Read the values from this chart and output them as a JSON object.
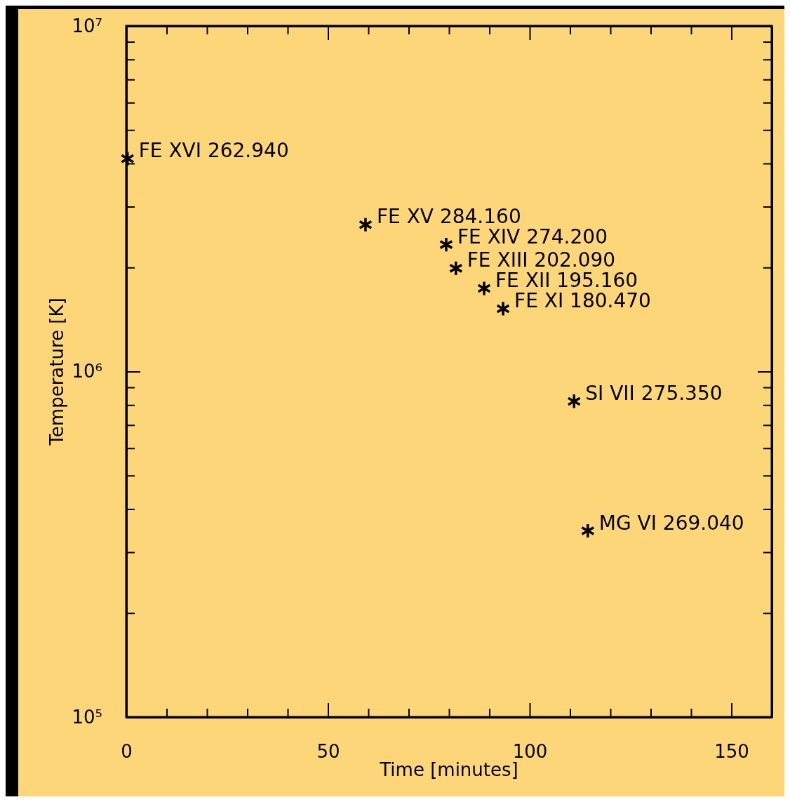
{
  "chart_data": {
    "type": "scatter",
    "xlabel": "Time [minutes]",
    "ylabel": "Temperature [K]",
    "log": "y",
    "marker": "cross",
    "grid": false,
    "x": [
      0.3,
      59.3,
      79.3,
      81.7,
      88.7,
      93.4,
      111,
      114.4
    ],
    "series": [
      {
        "color": "#000000",
        "values": [
          4130000,
          2660000,
          2330000,
          1990000,
          1740000,
          1520000,
          820000,
          346000
        ]
      }
    ],
    "xlim": [
      0,
      160
    ],
    "xticks": [
      0,
      {
        "value": 10,
        "label": null
      },
      {
        "value": 20,
        "label": null
      },
      {
        "value": 30,
        "label": null
      },
      {
        "value": 40,
        "label": null
      },
      50,
      {
        "value": 60,
        "label": null
      },
      {
        "value": 70,
        "label": null
      },
      {
        "value": 80,
        "label": null
      },
      {
        "value": 90,
        "label": null
      },
      100,
      {
        "value": 110,
        "label": null
      },
      {
        "value": 120,
        "label": null
      },
      {
        "value": 130,
        "label": null
      },
      {
        "value": 140,
        "label": null
      },
      150
    ],
    "ylim": [
      100000,
      10000000
    ],
    "yticks": [
      {
        "value": 100000,
        "label": "10⁵"
      },
      {
        "value": 200000,
        "label": null
      },
      {
        "value": 300000,
        "label": null
      },
      {
        "value": 400000,
        "label": null
      },
      {
        "value": 500000,
        "label": null
      },
      {
        "value": 600000,
        "label": null
      },
      {
        "value": 700000,
        "label": null
      },
      {
        "value": 800000,
        "label": null
      },
      {
        "value": 900000,
        "label": null
      },
      {
        "value": 1000000,
        "label": "10⁶"
      },
      {
        "value": 2000000,
        "label": null
      },
      {
        "value": 3000000,
        "label": null
      },
      {
        "value": 4000000,
        "label": null
      },
      {
        "value": 5000000,
        "label": null
      },
      {
        "value": 6000000,
        "label": null
      },
      {
        "value": 7000000,
        "label": null
      },
      {
        "value": 8000000,
        "label": null
      },
      {
        "value": 9000000,
        "label": null
      },
      {
        "value": 10000000,
        "label": "10⁷"
      }
    ],
    "annotations": [
      {
        "text": "FE XVI 262.940",
        "x": 0.3,
        "y": 4130000
      },
      {
        "text": "FE XV 284.160",
        "x": 59.3,
        "y": 2660000
      },
      {
        "text": "FE XIV 274.200",
        "x": 79.3,
        "y": 2330000
      },
      {
        "text": "FE XIII 202.090",
        "x": 81.7,
        "y": 1990000
      },
      {
        "text": "FE XII 195.160",
        "x": 88.7,
        "y": 1740000
      },
      {
        "text": "FE XI 180.470",
        "x": 93.4,
        "y": 1520000
      },
      {
        "text": "SI VII 275.350",
        "x": 111,
        "y": 820000
      },
      {
        "text": "MG VI 269.040",
        "x": 114.4,
        "y": 346000
      }
    ]
  }
}
